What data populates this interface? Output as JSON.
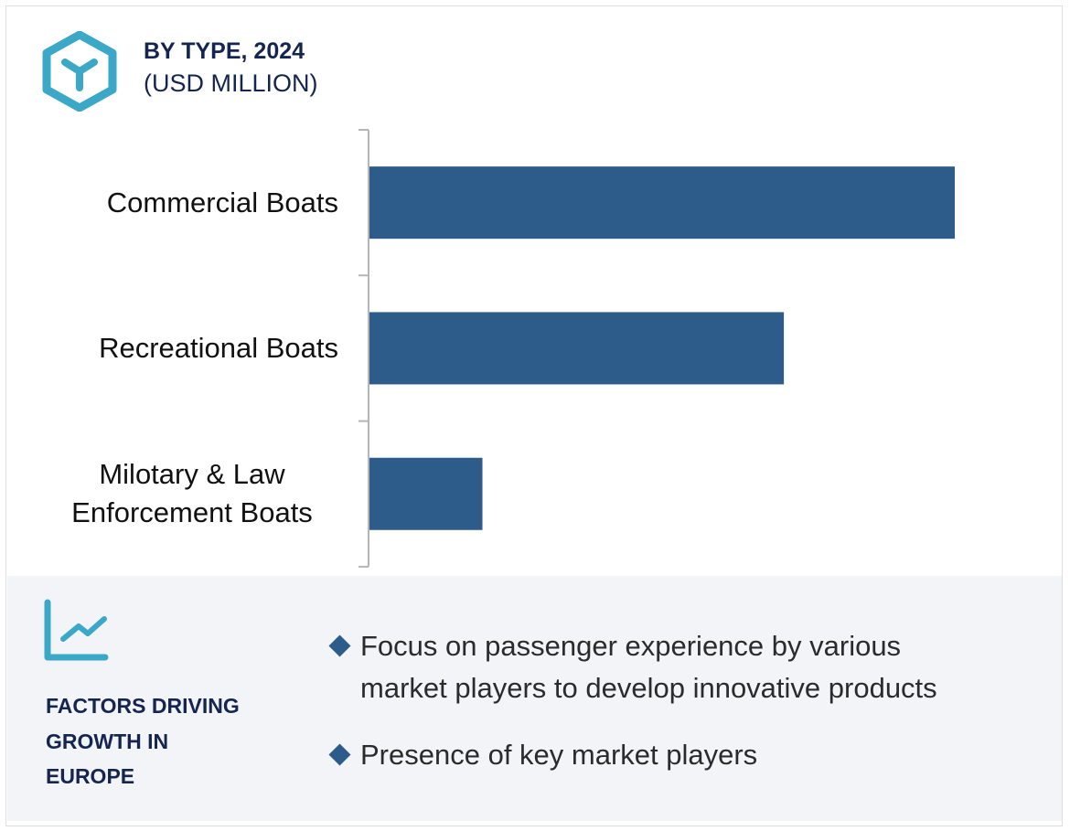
{
  "header": {
    "icon": "hexagon-y-icon",
    "title": "BY TYPE, 2024",
    "subtitle": "(USD MILLION)"
  },
  "chart_data": {
    "type": "bar",
    "orientation": "horizontal",
    "title": "BY TYPE, 2024",
    "subtitle": "(USD MILLION)",
    "categories": [
      "Commercial Boats",
      "Recreational Boats",
      "Milotary & Law Enforcement Boats"
    ],
    "category_lines": [
      [
        "Commercial Boats"
      ],
      [
        "Recreational Boats"
      ],
      [
        "Milotary & Law",
        "Enforcement Boats"
      ]
    ],
    "values_relative_percent": [
      100,
      70.8,
      19.3
    ],
    "value_axis_labels_shown": false,
    "grid": false,
    "bar_color": "#2d5b8a"
  },
  "factors": {
    "icon": "line-chart-trend-icon",
    "heading_lines": [
      "FACTORS DRIVING",
      "GROWTH IN",
      "EUROPE"
    ],
    "bullets": [
      [
        "Focus on passenger experience by various",
        "market players to develop innovative products"
      ],
      [
        "Presence of key market players"
      ]
    ]
  },
  "colors": {
    "accent": "#3aa8c6",
    "title": "#14254f",
    "bar": "#2d5b8a",
    "panel": "#f3f4f8"
  }
}
